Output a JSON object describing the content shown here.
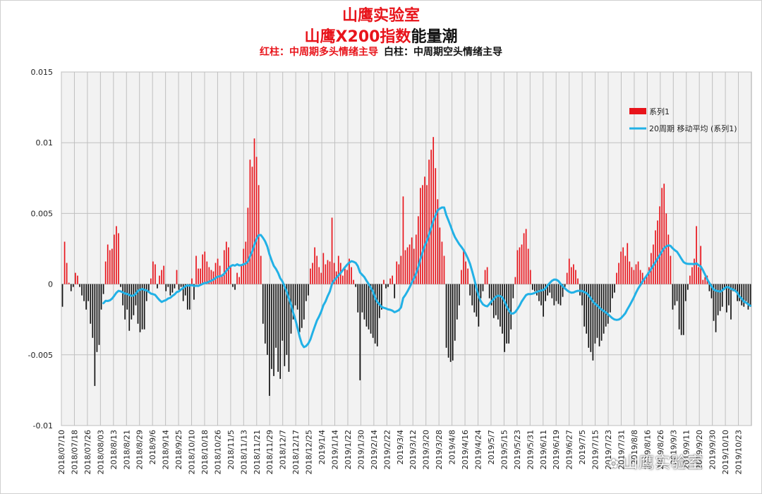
{
  "titles": {
    "line1": "山鹰实验室",
    "line2_red": "山鹰X200指数",
    "line2_black": "能量潮",
    "sub_red": "红柱：中周期多头情绪主导",
    "sub_black": "白柱：中周期空头情绪主导"
  },
  "watermark": "山鹰实验室",
  "colors": {
    "positive": "#e8141b",
    "negative": "#111111",
    "ma": "#22b1e6",
    "grid": "#bfbfbf",
    "plot_bg": "#f2f2f2"
  },
  "chart_data": {
    "type": "bar",
    "ylim": [
      -0.01,
      0.015
    ],
    "yticks": [
      "0.015",
      "0.01",
      "0.005",
      "0",
      "-0.005",
      "-0.01"
    ],
    "ytick_values": [
      0.015,
      0.01,
      0.005,
      0,
      -0.005,
      -0.01
    ],
    "grid": true,
    "legend_position": "top-right",
    "legend": {
      "bar": "系列1",
      "line": "20周期 移动平均 (系列1)"
    },
    "xticks": [
      "2018/07/10",
      "2018/07/18",
      "2018/07/26",
      "2018/08/03",
      "2018/8/13",
      "2018/8/21",
      "2018/8/29",
      "2018/9/6",
      "2018/9/14",
      "2018/9/25",
      "2018/10/10",
      "2018/10/18",
      "2018/10/26",
      "2018/11/5",
      "2018/11/13",
      "2018/11/21",
      "2018/11/29",
      "2018/12/7",
      "2018/12/17",
      "2018/12/25",
      "2019/1/4",
      "2019/1/14",
      "2019/1/22",
      "2019/1/30",
      "2019/2/14",
      "2019/2/22",
      "2019/3/4",
      "2019/3/12",
      "2019/3/20",
      "2019/3/28",
      "2019/4/8",
      "2019/4/16",
      "2019/4/24",
      "2019/5/7",
      "2019/5/15",
      "2019/5/23",
      "2019/5/31",
      "2019/6/11",
      "2019/6/19",
      "2019/6/27",
      "2019/7/5",
      "2019/7/15",
      "2019/7/23",
      "2019/7/31",
      "2019/8/8",
      "2019/8/16",
      "2019/8/26",
      "2019/9/3",
      "2019/9/11",
      "2019/9/20",
      "2019/9/30",
      "2019/10/10",
      "2019/10/23"
    ],
    "values": [
      -0.0016,
      0.003,
      0.0015,
      0.0001,
      -0.0005,
      -0.0002,
      0.0008,
      0.0006,
      -0.0002,
      -0.0008,
      -0.0012,
      -0.0018,
      -0.0012,
      -0.0028,
      -0.0038,
      -0.0072,
      -0.0048,
      -0.0043,
      -0.0018,
      -0.0007,
      0.0016,
      0.0028,
      0.0024,
      0.0025,
      0.0035,
      0.0041,
      0.0036,
      -0.0002,
      -0.0015,
      -0.0025,
      -0.0018,
      -0.0033,
      -0.0025,
      -0.0022,
      -0.0015,
      -0.0028,
      -0.0034,
      -0.0032,
      -0.0032,
      -0.0012,
      -0.0006,
      0.0004,
      0.0016,
      0.0014,
      -0.0003,
      0.0006,
      0.001,
      0.0013,
      -0.0005,
      -0.0002,
      -0.0008,
      -0.0006,
      -0.0003,
      0.001,
      -0.0004,
      -0.0002,
      -0.0012,
      -0.0008,
      -0.0018,
      -0.0018,
      0.0004,
      -0.0011,
      0.002,
      0.0011,
      0.0011,
      0.0021,
      0.0023,
      0.0016,
      0.0012,
      0.001,
      0.0009,
      0.0015,
      0.0018,
      0.0013,
      0.0007,
      0.0024,
      0.003,
      0.0026,
      0.0012,
      -0.0002,
      -0.0004,
      0.0008,
      0.0005,
      0.0013,
      0.0025,
      0.003,
      0.0054,
      0.0088,
      0.0083,
      0.0103,
      0.009,
      0.007,
      0.002,
      -0.0028,
      -0.0042,
      -0.005,
      -0.0079,
      -0.006,
      -0.0065,
      -0.0045,
      -0.0062,
      -0.0067,
      -0.004,
      -0.0058,
      -0.005,
      -0.0062,
      -0.0035,
      -0.0025,
      -0.0015,
      -0.0018,
      -0.0034,
      -0.0031,
      -0.0025,
      -0.0012,
      -0.0008,
      0.0011,
      0.0015,
      0.0026,
      0.002,
      0.0012,
      0.0008,
      0.0022,
      0.0014,
      0.0017,
      0.0016,
      0.0047,
      0.0015,
      0.0009,
      0.002,
      0.0015,
      0.0006,
      0.0011,
      0.001,
      0.0018,
      0.0012,
      0.0003,
      -0.0002,
      -0.002,
      -0.0068,
      -0.002,
      -0.0025,
      -0.003,
      -0.0032,
      -0.0035,
      -0.0038,
      -0.0042,
      -0.0044,
      -0.0024,
      -0.0018,
      0.0003,
      -0.0003,
      -0.0002,
      0.0004,
      0.0006,
      -0.001,
      0.0016,
      0.0014,
      0.002,
      0.0062,
      0.0024,
      0.0026,
      0.0028,
      0.0033,
      0.0025,
      0.0035,
      0.0048,
      0.0068,
      0.007,
      0.0076,
      0.007,
      0.0088,
      0.0095,
      0.0104,
      0.0082,
      0.006,
      0.004,
      0.003,
      0.002,
      -0.0045,
      -0.0052,
      -0.0055,
      -0.0054,
      -0.004,
      -0.0025,
      -0.0015,
      0.001,
      0.0024,
      0.0016,
      0.0011,
      -0.0008,
      -0.0015,
      -0.002,
      -0.0023,
      -0.003,
      -0.001,
      -0.0005,
      0.001,
      0.0012,
      -0.001,
      -0.0015,
      -0.0024,
      -0.0022,
      -0.0025,
      -0.003,
      -0.0035,
      -0.0048,
      -0.0042,
      -0.0042,
      -0.0032,
      -0.001,
      0.0005,
      0.0024,
      0.0026,
      0.0028,
      0.0036,
      0.0039,
      0.0025,
      0.001,
      -0.0004,
      -0.0005,
      -0.0008,
      -0.0012,
      -0.0015,
      -0.0023,
      -0.0012,
      -0.0008,
      -0.0006,
      -0.001,
      -0.0015,
      -0.0012,
      -0.0014,
      -0.0015,
      -0.0009,
      -0.0002,
      0.0008,
      0.0018,
      0.0012,
      0.0014,
      0.001,
      0.0004,
      -0.0008,
      -0.0015,
      -0.003,
      -0.0035,
      -0.0045,
      -0.0048,
      -0.0054,
      -0.0042,
      -0.0038,
      -0.0044,
      -0.004,
      -0.0035,
      -0.003,
      -0.0028,
      -0.002,
      -0.001,
      -0.0006,
      0.0008,
      0.0015,
      0.0023,
      0.0026,
      0.002,
      0.0029,
      0.0016,
      0.0012,
      0.001,
      0.0014,
      0.0016,
      0.001,
      0.0008,
      0.0003,
      0.0007,
      0.0012,
      0.0022,
      0.0028,
      0.0038,
      0.0045,
      0.0055,
      0.0068,
      0.0071,
      0.005,
      0.0035,
      0.002,
      -0.0018,
      -0.0015,
      -0.0012,
      -0.0032,
      -0.0036,
      -0.0036,
      -0.0012,
      -0.0004,
      0.0006,
      0.0012,
      0.0018,
      0.0041,
      0.0012,
      0.0027,
      0.0003,
      0.0005,
      0.0006,
      -0.0005,
      -0.001,
      -0.0026,
      -0.0034,
      -0.0022,
      -0.0019,
      -0.0016,
      -0.0004,
      -0.002,
      -0.0015,
      -0.0025,
      -0.0005,
      -0.0004,
      -0.0012,
      -0.0012,
      -0.0015,
      -0.0016,
      -0.0012,
      -0.0018,
      -0.0016
    ]
  }
}
